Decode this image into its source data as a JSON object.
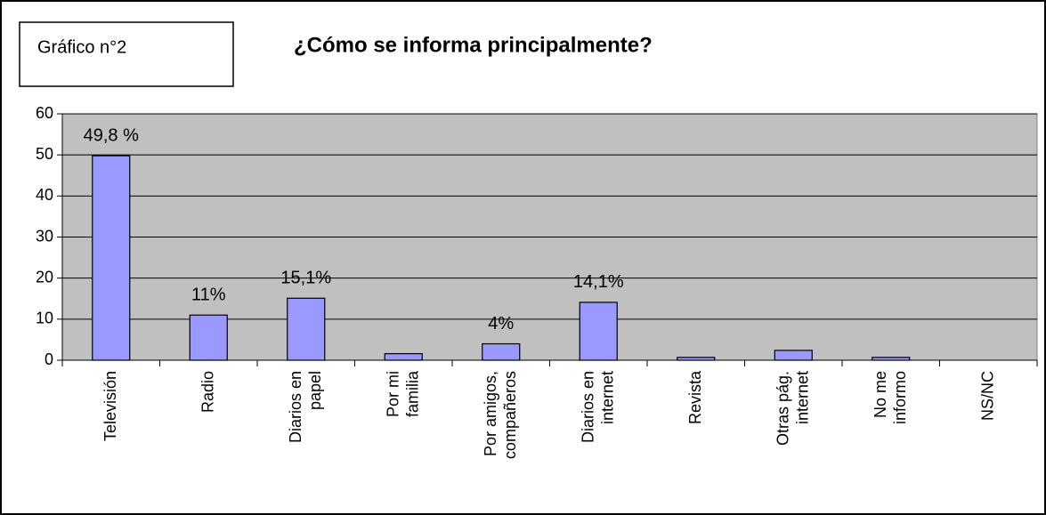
{
  "chart_data": {
    "type": "bar",
    "label": "Gráfico n°2",
    "title": "¿Cómo se informa principalmente?",
    "categories": [
      "Televisión",
      "Radio",
      "Diarios en\npapel",
      "Por mi\nfamilia",
      "Por amigos,\ncompañeros",
      "Diarios en\ninternet",
      "Revista",
      "Otras pág.\ninternet",
      "No me\ninformo",
      "NS/NC"
    ],
    "values": [
      49.8,
      11,
      15.1,
      1.6,
      4,
      14.1,
      0.7,
      2.4,
      0.7,
      0
    ],
    "value_labels": [
      "49,8 %",
      "11%",
      "15,1%",
      null,
      "4%",
      "14,1%",
      null,
      null,
      null,
      null
    ],
    "color": "#9999ff",
    "ylim": [
      0,
      60
    ],
    "yticks": [
      0,
      10,
      20,
      30,
      40,
      50,
      60
    ],
    "grid": true
  }
}
